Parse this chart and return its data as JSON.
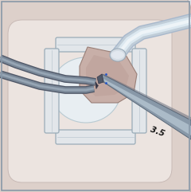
{
  "bg_color": "#eaecf0",
  "grid_color": "#d4d8de",
  "border_color": "#8898a8",
  "eye_outer_fill": "#ddd0ca",
  "eye_outer_edge": "#c0b0ac",
  "eye_inner_fill": "#ece4e0",
  "eye_inner_edge": "#c8bab6",
  "cornea_fill": "#e8eef2",
  "cornea_edge": "#b8cad2",
  "speculum_fill": "#e2e6ea",
  "speculum_edge": "#9aacb8",
  "flap_fill": "#c8afa8",
  "flap_edge": "#9a8078",
  "blade_fill": "#8898a8",
  "blade_edge": "#5a6878",
  "blade_hi": "#b8c8d4",
  "blade_dark": "#606878",
  "tube_outer": "#c0cdd8",
  "tube_mid": "#dce8f0",
  "tube_hi": "#eef4f8",
  "tube_stripe": "#a8b8cc",
  "tube_connector": "#d4dce4",
  "forceps_fill": "#7a8898",
  "forceps_hi": "#aabac8",
  "forceps_edge": "#505868",
  "marker_blue": "#2255cc",
  "text_color": "#151515",
  "measurement_text": "3.5",
  "figsize": [
    2.4,
    2.41
  ],
  "dpi": 100
}
